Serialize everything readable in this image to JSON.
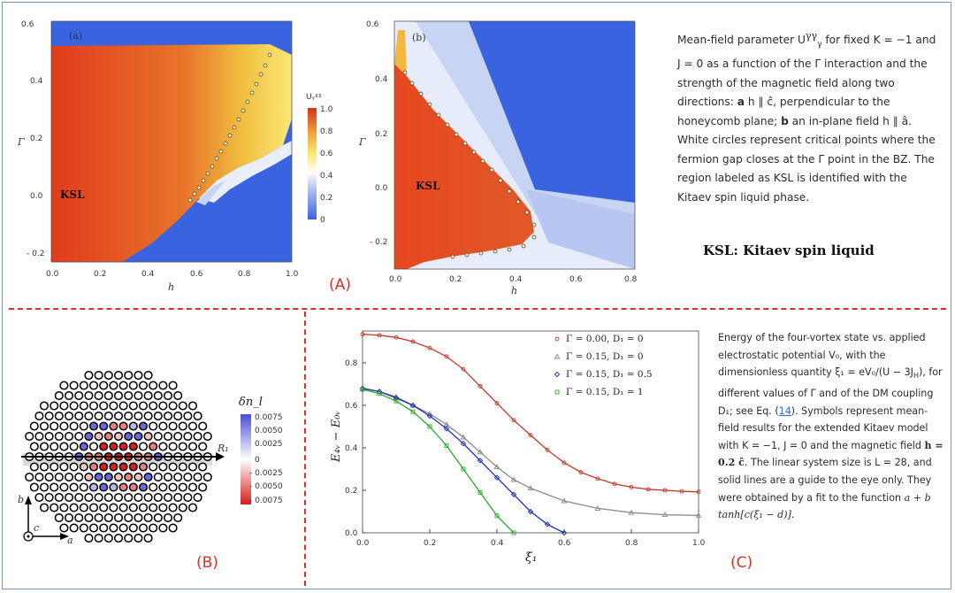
{
  "panel_labels": {
    "A": "(A)",
    "B": "(B)",
    "C": "(C)"
  },
  "plot_a": {
    "tag": "(a)",
    "region_label": "KSL",
    "xlabel": "h",
    "ylabel": "Γ",
    "xticks": [
      "0.0",
      "0.2",
      "0.4",
      "0.6",
      "0.8",
      "1.0"
    ],
    "yticks": [
      "0.6",
      "0.4",
      "0.2",
      "0.0",
      "- 0.2"
    ],
    "colorbar_title": "Uᵧˠˠ",
    "colorbar_ticks": [
      "1.0",
      "0.8",
      "0.6",
      "0.4",
      "0.2",
      "0"
    ]
  },
  "plot_b": {
    "tag": "(b)",
    "region_label": "KSL",
    "xlabel": "h",
    "ylabel": "Γ",
    "xticks": [
      "0.0",
      "0.2",
      "0.4",
      "0.6",
      "0.8"
    ],
    "yticks": [
      "0.6",
      "0.4",
      "0.2",
      "0.0",
      "- 0.2"
    ]
  },
  "caption_a": {
    "line1": "Mean-field parameter U",
    "line1b": " for fixed K = −1 and J = 0 as a function of the Γ interaction and the strength of the magnetic field along two directions: ",
    "a_lbl": "a",
    "a_txt": " h ∥ ĉ, perpendicular to the honeycomb plane; ",
    "b_lbl": "b",
    "b_txt": " an in-plane field h ∥ â. White circles represent critical points where the fermion gap closes at the Γ point in the BZ. The region labeled as KSL is identified with the Kitaev spin liquid phase."
  },
  "ksl_title": "KSL: Kitaev spin liquid",
  "lattice": {
    "colorbar_title": "δn_l",
    "colorbar_ticks": [
      "0.0075",
      "0.0050",
      "0.0025",
      "0",
      "- 0.0025",
      "- 0.0050",
      "- 0.0075"
    ],
    "axis_label": "R₁",
    "axes": {
      "b": "b",
      "c": "c",
      "a": "a"
    }
  },
  "chart_data": {
    "type": "line",
    "xlabel": "ξ₁",
    "ylabel": "E₄ᵥ − E₀ᵥ",
    "xlim": [
      0,
      1.0
    ],
    "ylim": [
      0,
      0.95
    ],
    "xticks": [
      "0.0",
      "0.2",
      "0.4",
      "0.6",
      "0.8",
      "1.0"
    ],
    "yticks": [
      "0.0",
      "0.2",
      "0.4",
      "0.6",
      "0.8"
    ],
    "legend_position": "top-right",
    "series": [
      {
        "name": "Γ = 0.00,  D₁ = 0",
        "color": "#c0392b",
        "marker": "circle",
        "x": [
          0.0,
          0.05,
          0.1,
          0.15,
          0.2,
          0.25,
          0.3,
          0.35,
          0.4,
          0.45,
          0.5,
          0.55,
          0.6,
          0.65,
          0.7,
          0.75,
          0.8,
          0.85,
          0.9,
          0.95,
          1.0
        ],
        "y": [
          0.935,
          0.93,
          0.92,
          0.9,
          0.87,
          0.83,
          0.77,
          0.69,
          0.61,
          0.53,
          0.46,
          0.39,
          0.33,
          0.285,
          0.255,
          0.23,
          0.215,
          0.205,
          0.2,
          0.195,
          0.193
        ]
      },
      {
        "name": "Γ = 0.15,  D₁ = 0",
        "color": "#8a8a8a",
        "marker": "triangle",
        "x": [
          0.0,
          0.05,
          0.1,
          0.15,
          0.2,
          0.25,
          0.3,
          0.35,
          0.4,
          0.45,
          0.5,
          0.6,
          0.7,
          0.8,
          0.9,
          1.0
        ],
        "y": [
          0.68,
          0.665,
          0.64,
          0.6,
          0.56,
          0.51,
          0.45,
          0.38,
          0.31,
          0.25,
          0.21,
          0.15,
          0.115,
          0.095,
          0.085,
          0.082
        ]
      },
      {
        "name": "Γ = 0.15,  D₁ = 0.5",
        "color": "#1f2fb8",
        "marker": "diamond",
        "x": [
          0.0,
          0.05,
          0.1,
          0.15,
          0.2,
          0.25,
          0.3,
          0.35,
          0.4,
          0.45,
          0.5,
          0.55,
          0.6
        ],
        "y": [
          0.68,
          0.665,
          0.635,
          0.6,
          0.55,
          0.49,
          0.42,
          0.34,
          0.26,
          0.18,
          0.1,
          0.04,
          0.0
        ]
      },
      {
        "name": "Γ = 0.15,  D₁ = 1",
        "color": "#2ea82e",
        "marker": "square",
        "x": [
          0.0,
          0.05,
          0.1,
          0.15,
          0.2,
          0.25,
          0.3,
          0.35,
          0.4,
          0.45
        ],
        "y": [
          0.675,
          0.655,
          0.62,
          0.57,
          0.5,
          0.41,
          0.3,
          0.19,
          0.08,
          0.0
        ]
      }
    ]
  },
  "caption_c": {
    "p1": "Energy of the four-vortex state vs. applied electrostatic potential V₀, with the dimensionless quantity ξ₁ = eV₀/(U − 3J",
    "p1h": "H",
    "p2": "), for different values of Γ and of the DM coupling D₁; see Eq. (",
    "ref": "14",
    "p3": "). Symbols represent mean-field results for the extended Kitaev model with K = −1, J = 0 and the magnetic field ",
    "field": "h = 0.2 ĉ",
    "p4": ". The linear system size is L = 28, and solid lines are a guide to the eye only. They were obtained by a fit to the function ",
    "func": "a + b tanh[c(ξ₁ − d)]",
    "p5": "."
  }
}
